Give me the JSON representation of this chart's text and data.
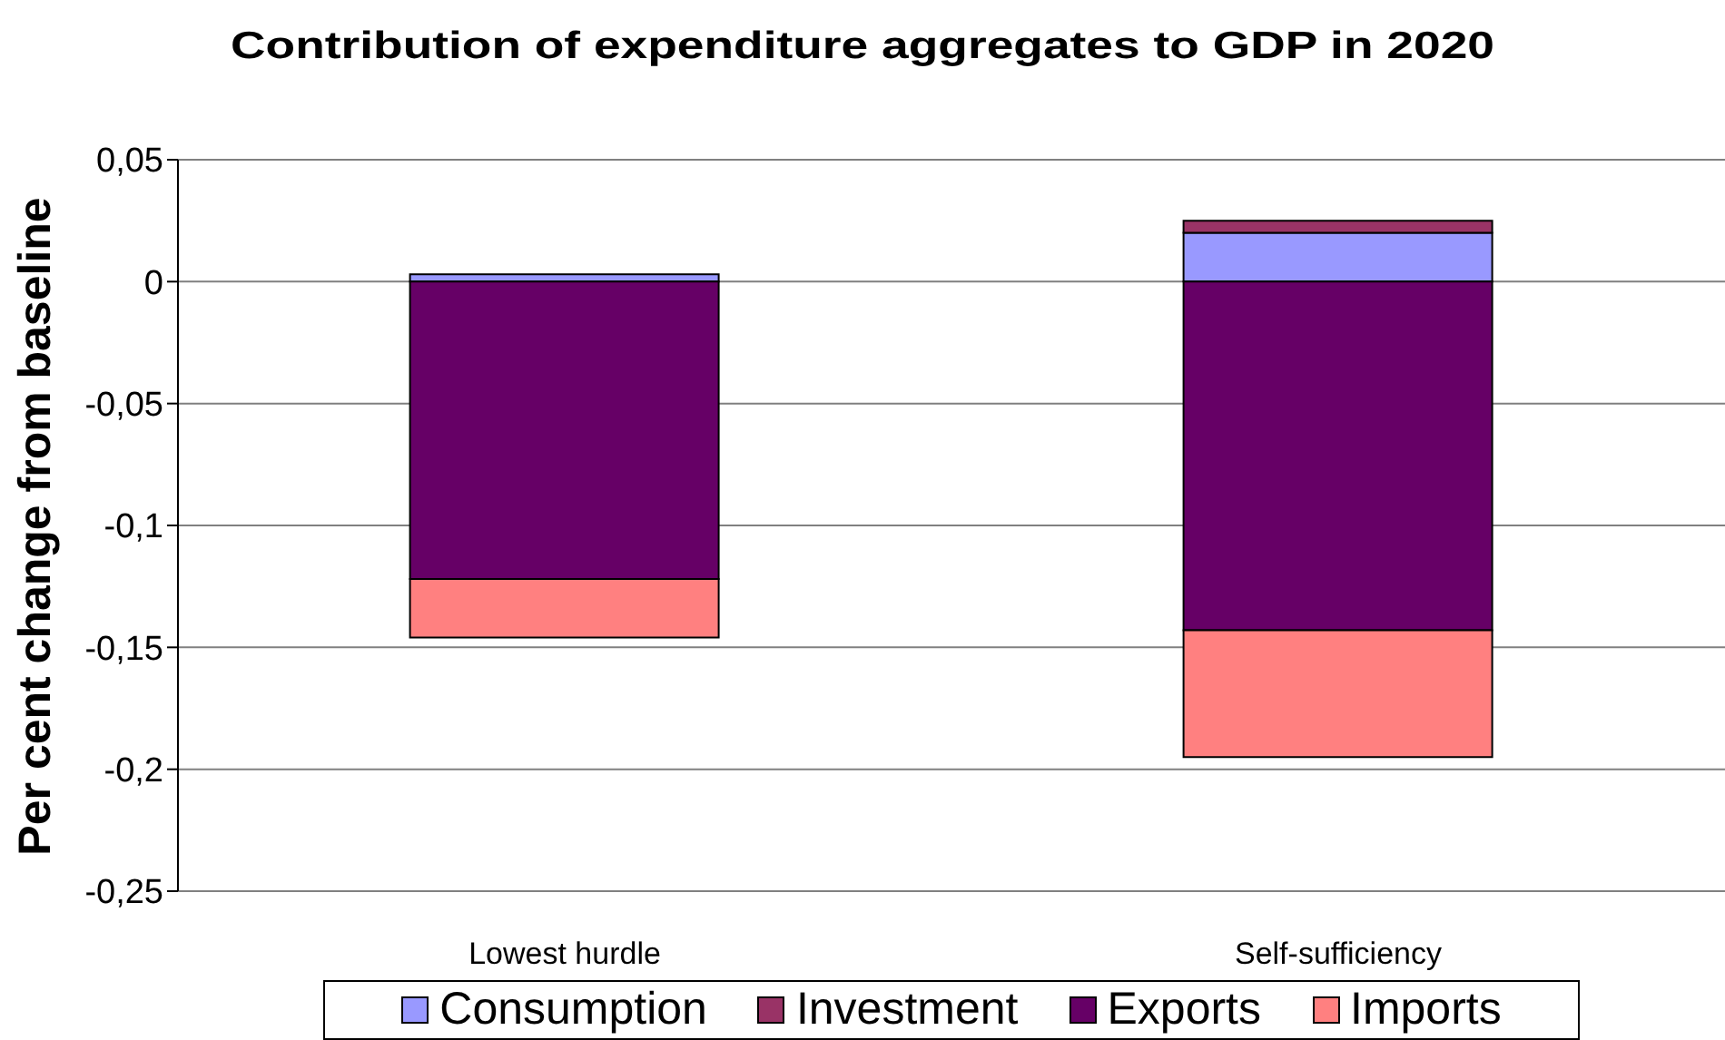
{
  "chart_data": {
    "type": "bar",
    "title": "Contribution of expenditure aggregates to GDP in 2020",
    "ylabel": "Per cent change from baseline",
    "categories": [
      "Lowest hurdle",
      "Self-sufficiency"
    ],
    "series": [
      {
        "name": "Consumption",
        "color": "#9999ff",
        "values": [
          0.003,
          0.02
        ]
      },
      {
        "name": "Investment",
        "color": "#993366",
        "values": [
          0,
          0.005
        ]
      },
      {
        "name": "Exports",
        "color": "#660066",
        "values": [
          -0.122,
          -0.143
        ]
      },
      {
        "name": "Imports",
        "color": "#ff8080",
        "values": [
          -0.024,
          -0.052
        ]
      }
    ],
    "stacked": true,
    "ylim": [
      -0.25,
      0.05
    ],
    "yticks": [
      {
        "value": -0.25,
        "label": "-0,25"
      },
      {
        "value": -0.2,
        "label": "-0,2"
      },
      {
        "value": -0.15,
        "label": "-0,15"
      },
      {
        "value": -0.1,
        "label": "-0,1"
      },
      {
        "value": -0.05,
        "label": "-0,05"
      },
      {
        "value": 0,
        "label": "0"
      },
      {
        "value": 0.05,
        "label": "0,05"
      }
    ],
    "grid": "y",
    "legend": "bottom"
  }
}
